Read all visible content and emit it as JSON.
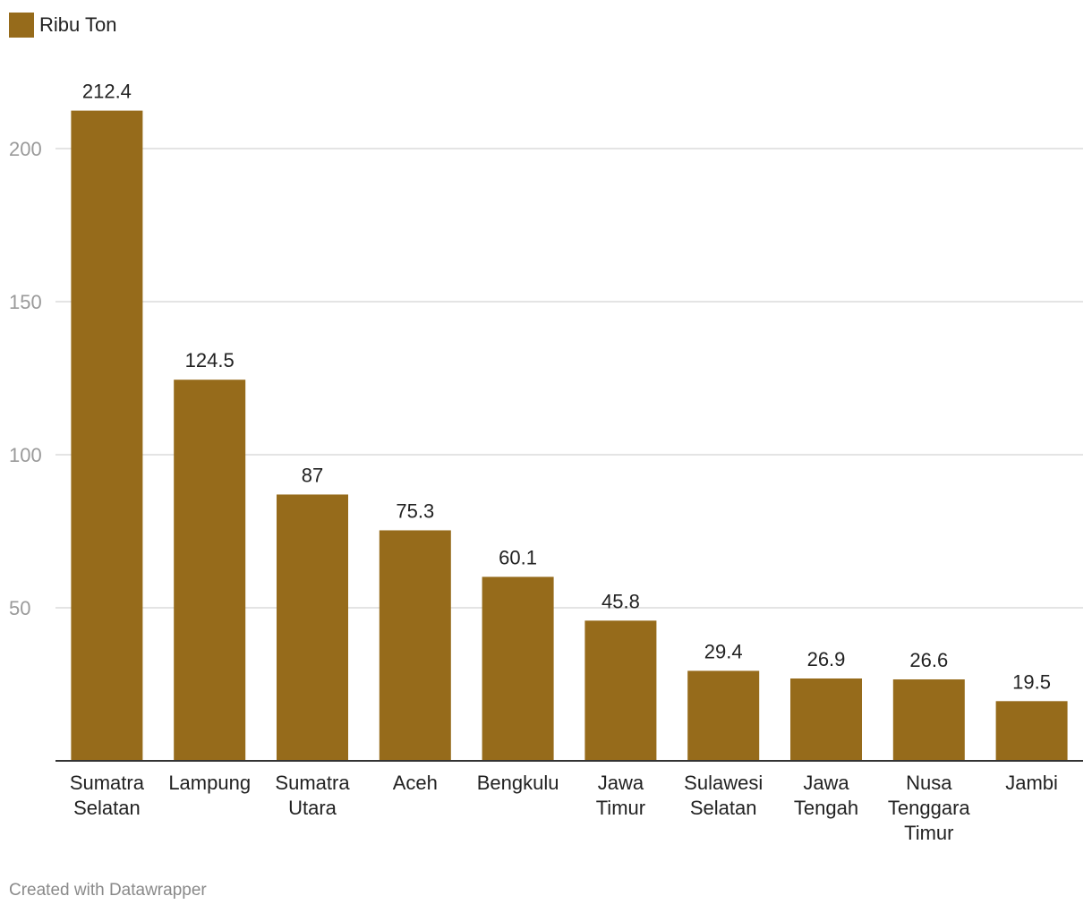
{
  "legend": {
    "label": "Ribu Ton",
    "color": "#966b1b"
  },
  "credit": "Created with Datawrapper",
  "colors": {
    "bar": "#966b1b",
    "grid": "#dcdcdc",
    "axis": "#333333",
    "tick_text": "#9a9a9a",
    "label_text": "#222222"
  },
  "chart_data": {
    "type": "bar",
    "categories": [
      [
        "Sumatra",
        "Selatan"
      ],
      [
        "Lampung"
      ],
      [
        "Sumatra",
        "Utara"
      ],
      [
        "Aceh"
      ],
      [
        "Bengkulu"
      ],
      [
        "Jawa",
        "Timur"
      ],
      [
        "Sulawesi",
        "Selatan"
      ],
      [
        "Jawa",
        "Tengah"
      ],
      [
        "Nusa",
        "Tenggara",
        "Timur"
      ],
      [
        "Jambi"
      ]
    ],
    "series": [
      {
        "name": "Ribu Ton",
        "values": [
          212.4,
          124.5,
          87,
          75.3,
          60.1,
          45.8,
          29.4,
          26.9,
          26.6,
          19.5
        ]
      }
    ],
    "value_labels": [
      "212.4",
      "124.5",
      "87",
      "75.3",
      "60.1",
      "45.8",
      "29.4",
      "26.9",
      "26.6",
      "19.5"
    ],
    "y_ticks": [
      50,
      100,
      150,
      200
    ],
    "ylim": [
      0,
      220
    ],
    "grid": true,
    "legend_position": "top-left"
  }
}
